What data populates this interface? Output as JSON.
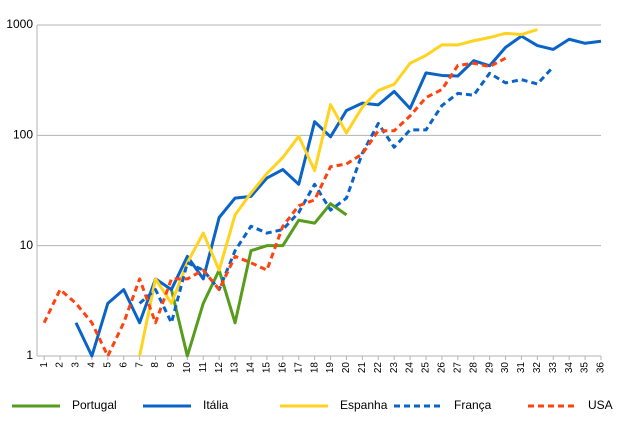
{
  "chart_data": {
    "type": "line",
    "x": [
      1,
      2,
      3,
      4,
      5,
      6,
      7,
      8,
      9,
      10,
      11,
      12,
      13,
      14,
      15,
      16,
      17,
      18,
      19,
      20,
      21,
      22,
      23,
      24,
      25,
      26,
      27,
      28,
      29,
      30,
      31,
      32,
      33,
      34,
      35,
      36
    ],
    "xlim": [
      0.55,
      36
    ],
    "xticks": [
      1,
      2,
      3,
      4,
      5,
      6,
      7,
      8,
      9,
      10,
      11,
      12,
      13,
      14,
      15,
      16,
      17,
      18,
      19,
      20,
      21,
      22,
      23,
      24,
      25,
      26,
      27,
      28,
      29,
      30,
      31,
      32,
      33,
      34,
      35,
      36
    ],
    "ylim": [
      1,
      1000
    ],
    "yticks": [
      1,
      10,
      100,
      1000
    ],
    "log_y": true,
    "grid": true,
    "legend": "bottom",
    "series": [
      {
        "name": "Portugal",
        "color": "#579d1c",
        "dash": false,
        "values": [
          null,
          null,
          null,
          null,
          null,
          null,
          null,
          null,
          4,
          1,
          3,
          6,
          2,
          9,
          10,
          10,
          17,
          16,
          24,
          19,
          null,
          null,
          null,
          null,
          null,
          null,
          null,
          null,
          null,
          null,
          null,
          null,
          null,
          null,
          null,
          null
        ]
      },
      {
        "name": "Itália",
        "color": "#0a64c8",
        "dash": false,
        "values": [
          null,
          null,
          2,
          1,
          3,
          4,
          2,
          5,
          4,
          8,
          5,
          18,
          27,
          28,
          41,
          49,
          36,
          133,
          97,
          168,
          196,
          189,
          250,
          175,
          368,
          349,
          345,
          475,
          427,
          627,
          793,
          651,
          601,
          743,
          683,
          712
        ]
      },
      {
        "name": "Espanha",
        "color": "#ffd320",
        "dash": false,
        "values": [
          null,
          null,
          null,
          null,
          null,
          null,
          1,
          5,
          3,
          7,
          13,
          6,
          19,
          30,
          45,
          63,
          98,
          48,
          190,
          105,
          180,
          255,
          290,
          450,
          530,
          660,
          660,
          720,
          770,
          840,
          820,
          910,
          null,
          null,
          null,
          null
        ]
      },
      {
        "name": "França",
        "color": "#0a64c8",
        "dash": true,
        "values": [
          null,
          null,
          null,
          null,
          null,
          null,
          3,
          4,
          2,
          7,
          6,
          4,
          9,
          15,
          13,
          14,
          20,
          36,
          21,
          27,
          69,
          128,
          78,
          112,
          112,
          186,
          240,
          231,
          365,
          299,
          320,
          292,
          418,
          null,
          null,
          null
        ]
      },
      {
        "name": "USA",
        "color": "#ff420e",
        "dash": true,
        "values": [
          2,
          4,
          3,
          2,
          1,
          2,
          5,
          2,
          5,
          5,
          6,
          4,
          8,
          7,
          6,
          15,
          23,
          26,
          52,
          55,
          68,
          110,
          110,
          150,
          220,
          260,
          430,
          450,
          420,
          500,
          null,
          null,
          null,
          null,
          null,
          null
        ]
      }
    ]
  }
}
